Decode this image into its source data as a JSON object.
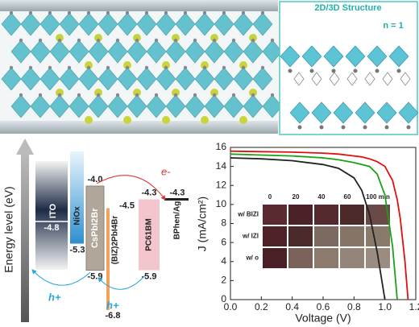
{
  "structure_panel": {
    "title": "2D/3D Structure",
    "note": "n = 1"
  },
  "energy_diagram": {
    "axis_label": "Energy level (eV)",
    "layers": [
      {
        "name": "ITO",
        "level": -4.8
      },
      {
        "name": "NiOx",
        "bottom": -5.3
      },
      {
        "name": "CsPbI2Br",
        "top": {
          "value": -4.0,
          "label": "-4.0"
        },
        "bottom": -5.9
      },
      {
        "name": "(BIZ)2PbI4Br",
        "top": -4.5,
        "bottom": -6.8
      },
      {
        "name": "PC61BM",
        "top": -4.3,
        "bottom": -5.9
      },
      {
        "name": "BPhen/Ag",
        "level": -4.3
      }
    ],
    "electron_label": "e-",
    "hole_labels": [
      "h+",
      "h+"
    ]
  },
  "chart_data": {
    "type": "line",
    "xlabel": "Voltage (V)",
    "ylabel": "J (mA/cm²)",
    "x": [
      0,
      0.2,
      0.4,
      0.6,
      0.7,
      0.8,
      0.85,
      0.9,
      0.95,
      1.0,
      1.05,
      1.08,
      1.1,
      1.13,
      1.15
    ],
    "series": [
      {
        "color": "#222222",
        "values": [
          14.9,
          14.8,
          14.6,
          14.2,
          13.8,
          12.8,
          11.5,
          9.0,
          5.0,
          0,
          null,
          null,
          null,
          null,
          null
        ]
      },
      {
        "color": "#1aa11a",
        "values": [
          15.3,
          15.2,
          15.1,
          14.9,
          14.7,
          14.4,
          14.2,
          14.0,
          13.2,
          11.0,
          5.5,
          0,
          null,
          null,
          null
        ]
      },
      {
        "color": "#e01010",
        "values": [
          15.6,
          15.55,
          15.5,
          15.4,
          15.3,
          15.1,
          15.0,
          14.8,
          14.5,
          14.0,
          12.5,
          10.5,
          8.5,
          4.0,
          0
        ]
      }
    ],
    "xlim": [
      0,
      1.2
    ],
    "xticks": [
      {
        "value": 0,
        "label": "0.0"
      },
      {
        "value": 0.2,
        "label": "0.2"
      },
      {
        "value": 0.4,
        "label": "0.4"
      },
      {
        "value": 0.6,
        "label": "0.6"
      },
      {
        "value": 0.8,
        "label": "0.8"
      },
      {
        "value": 1.0,
        "label": "1.0"
      },
      {
        "value": 1.2,
        "label": "1.2"
      }
    ],
    "ylim": [
      0,
      16
    ],
    "yticks": [
      0,
      2,
      4,
      6,
      8,
      10,
      12,
      14,
      16
    ]
  },
  "inset": {
    "columns": [
      "0",
      "20",
      "40",
      "60",
      "100 min"
    ],
    "rows": [
      "w/ BIZI",
      "w/ IZI",
      "w/ o"
    ]
  }
}
